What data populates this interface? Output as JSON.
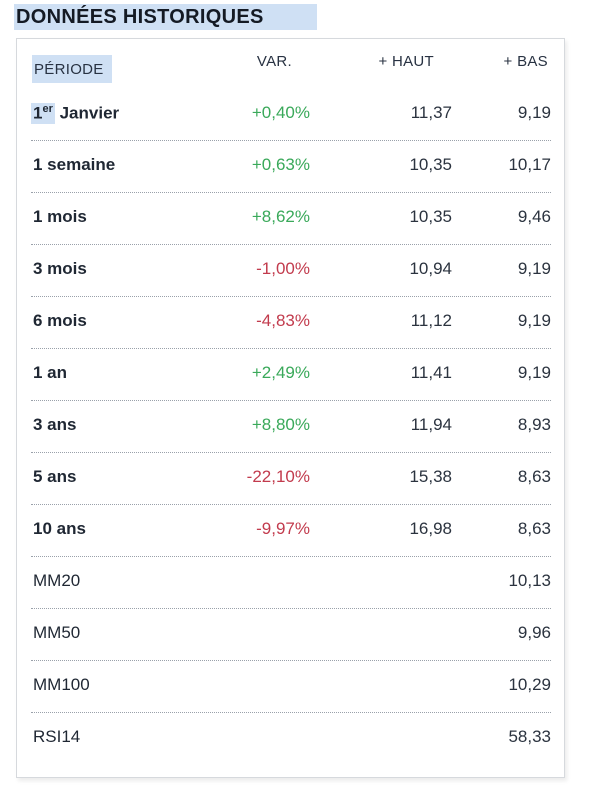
{
  "title": "DONNÉES HISTORIQUES",
  "headers": {
    "period": "PÉRIODE",
    "var": "VAR.",
    "high": "+ HAUT",
    "low": "+ BAS"
  },
  "first_row": {
    "label_num": "1",
    "label_sup": "er",
    "label_rest": " Janvier",
    "var": "+0,40%",
    "high": "11,37",
    "low": "9,19"
  },
  "rows": [
    {
      "label": "1 semaine",
      "var": "+0,63%",
      "high": "10,35",
      "low": "10,17"
    },
    {
      "label": "1 mois",
      "var": "+8,62%",
      "high": "10,35",
      "low": "9,46"
    },
    {
      "label": "3 mois",
      "var": "-1,00%",
      "high": "10,94",
      "low": "9,19"
    },
    {
      "label": "6 mois",
      "var": "-4,83%",
      "high": "11,12",
      "low": "9,19"
    },
    {
      "label": "1 an",
      "var": "+2,49%",
      "high": "11,41",
      "low": "9,19"
    },
    {
      "label": "3 ans",
      "var": "+8,80%",
      "high": "11,94",
      "low": "8,93"
    },
    {
      "label": "5 ans",
      "var": "-22,10%",
      "high": "15,38",
      "low": "8,63"
    },
    {
      "label": "10 ans",
      "var": "-9,97%",
      "high": "16,98",
      "low": "8,63"
    }
  ],
  "indicators": [
    {
      "label": "MM20",
      "value": "10,13"
    },
    {
      "label": "MM50",
      "value": "9,96"
    },
    {
      "label": "MM100",
      "value": "10,29"
    },
    {
      "label": "RSI14",
      "value": "58,33"
    }
  ],
  "colors": {
    "positive": "#3aa95a",
    "negative": "#c23b4d",
    "highlight": "#cfe0f4"
  }
}
